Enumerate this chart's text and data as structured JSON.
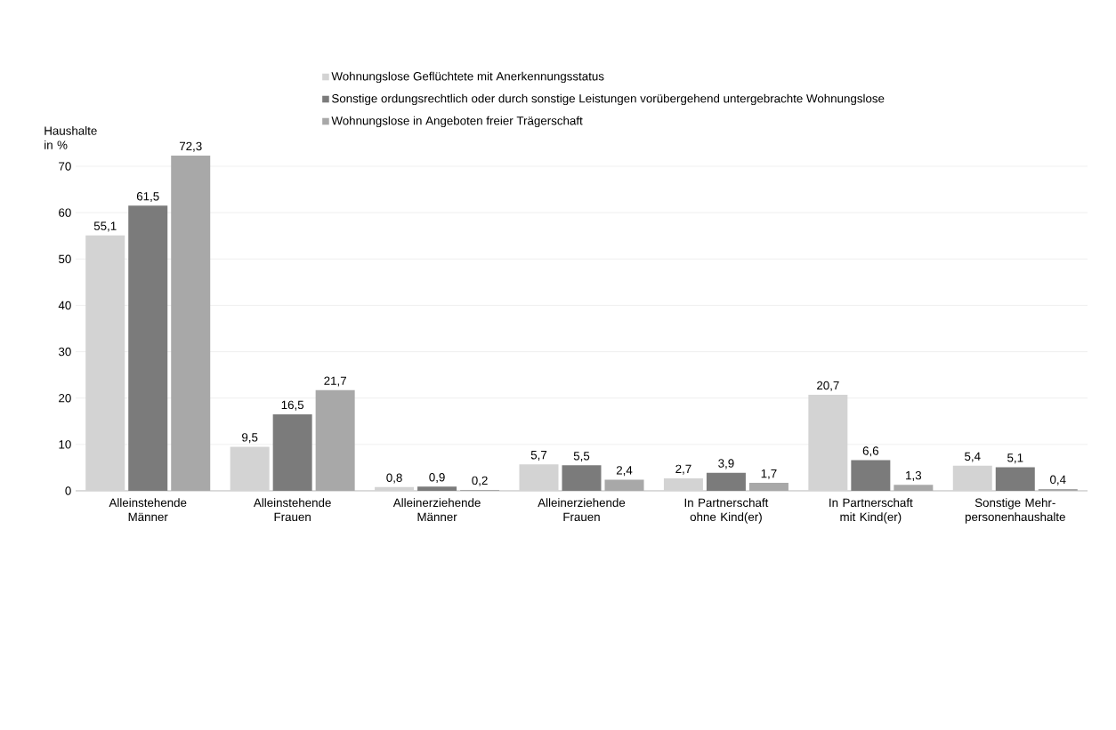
{
  "chart_data": {
    "type": "bar",
    "ylabel": "Haushalte in %",
    "categories": [
      "Alleinstehende Männer",
      "Alleinstehende Frauen",
      "Alleinerziehende Männer",
      "Alleinerziehende Frauen",
      "In Partnerschaft ohne Kind(er)",
      "In Partnerschaft mit Kind(er)",
      "Sonstige Mehr-personenhaushalte"
    ],
    "series": [
      {
        "name": "Wohnungslose Geflüchtete mit Anerkennungsstatus",
        "color": "#d3d3d3",
        "values": [
          55.1,
          9.5,
          0.8,
          5.7,
          2.7,
          20.7,
          5.4
        ],
        "value_labels": [
          "55,1",
          "9,5",
          "0,8",
          "5,7",
          "2,7",
          "20,7",
          "5,4"
        ]
      },
      {
        "name": "Sonstige ordungsrechtlich oder durch sonstige Leistungen vorübergehend untergebrachte Wohnungslose",
        "color": "#7b7b7b",
        "values": [
          61.5,
          16.5,
          0.9,
          5.5,
          3.9,
          6.6,
          5.1
        ],
        "value_labels": [
          "61,5",
          "16,5",
          "0,9",
          "5,5",
          "3,9",
          "6,6",
          "5,1"
        ]
      },
      {
        "name": "Wohnungslose in Angeboten freier Trägerschaft",
        "color": "#a8a8a8",
        "values": [
          72.3,
          21.7,
          0.2,
          2.4,
          1.7,
          1.3,
          0.4
        ],
        "value_labels": [
          "72,3",
          "21,7",
          "0,2",
          "2,4",
          "1,7",
          "1,3",
          "0,4"
        ]
      }
    ],
    "ylim": [
      0,
      72.3
    ],
    "yticks": [
      0,
      10,
      20,
      30,
      40,
      50,
      60,
      70
    ],
    "grid": "y",
    "legend": "top"
  }
}
